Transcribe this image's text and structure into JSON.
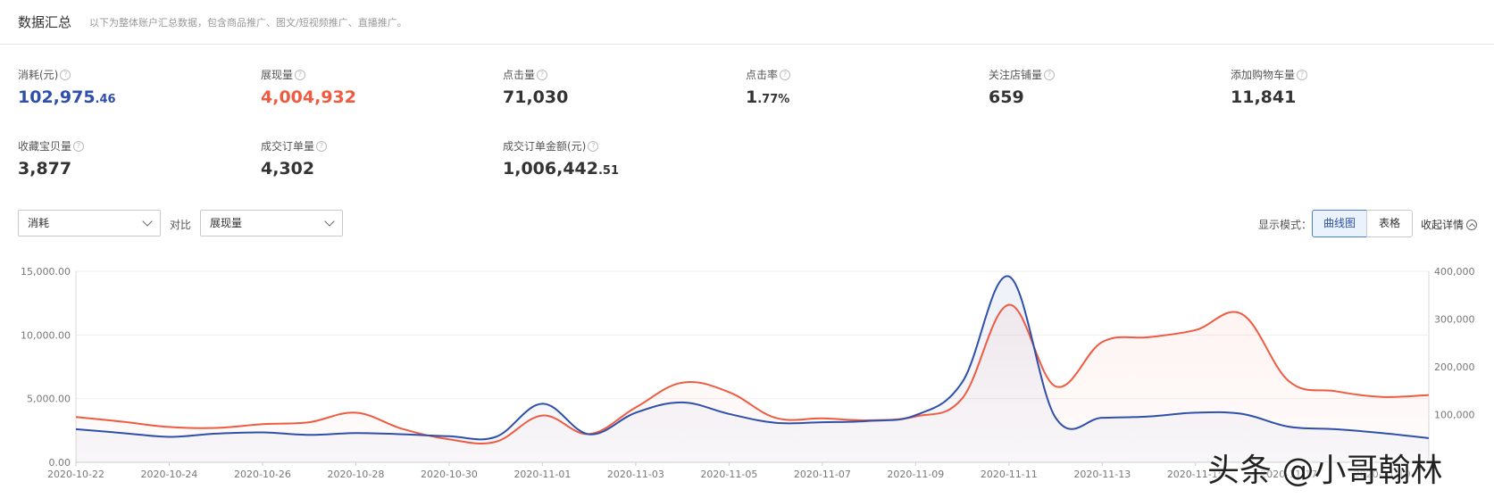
{
  "header": {
    "title": "数据汇总",
    "description": "以下为整体账户汇总数据，包含商品推广、图文/短视频推广、直播推广。"
  },
  "metrics": [
    {
      "label": "消耗(元)",
      "int": "102,975",
      "dec": ".46",
      "color": "blue"
    },
    {
      "label": "展现量",
      "int": "4,004,932",
      "dec": "",
      "color": "red"
    },
    {
      "label": "点击量",
      "int": "71,030",
      "dec": "",
      "color": ""
    },
    {
      "label": "点击率",
      "int": "1",
      "dec": ".77%",
      "color": ""
    },
    {
      "label": "关注店铺量",
      "int": "659",
      "dec": "",
      "color": ""
    },
    {
      "label": "添加购物车量",
      "int": "11,841",
      "dec": "",
      "color": ""
    },
    {
      "label": "收藏宝贝量",
      "int": "3,877",
      "dec": "",
      "color": ""
    },
    {
      "label": "成交订单量",
      "int": "4,302",
      "dec": "",
      "color": ""
    },
    {
      "label": "成交订单金额(元)",
      "int": "1,006,442",
      "dec": ".51",
      "color": ""
    }
  ],
  "help_glyph": "?",
  "controls": {
    "metric_select": "消耗",
    "compare_label": "对比",
    "compare_select": "展现量",
    "display_mode_label": "显示模式：",
    "mode_curve": "曲线图",
    "mode_table": "表格",
    "collapse_label": "收起详情"
  },
  "colors": {
    "primary_series": "#2e4faa",
    "secondary_series": "#ee5b41",
    "active_tab": "#4a7fd4"
  },
  "chart_data": {
    "type": "line",
    "x": [
      "2020-10-22",
      "2020-10-23",
      "2020-10-24",
      "2020-10-25",
      "2020-10-26",
      "2020-10-27",
      "2020-10-28",
      "2020-10-29",
      "2020-10-30",
      "2020-10-31",
      "2020-11-01",
      "2020-11-02",
      "2020-11-03",
      "2020-11-04",
      "2020-11-05",
      "2020-11-06",
      "2020-11-07",
      "2020-11-08",
      "2020-11-09",
      "2020-11-10",
      "2020-11-11",
      "2020-11-12",
      "2020-11-13",
      "2020-11-14",
      "2020-11-15",
      "2020-11-16",
      "2020-11-17",
      "2020-11-18",
      "2020-11-19",
      "2020-11-20"
    ],
    "x_tick_labels": [
      "2020-10-22",
      "2020-10-24",
      "2020-10-26",
      "2020-10-28",
      "2020-10-30",
      "2020-11-01",
      "2020-11-03",
      "2020-11-05",
      "2020-11-07",
      "2020-11-09",
      "2020-11-11",
      "2020-11-13",
      "2020-11-15",
      "2020-11-17",
      "2020-11-19"
    ],
    "series": [
      {
        "name": "消耗",
        "axis": "left",
        "values": [
          2600,
          2300,
          2000,
          2250,
          2350,
          2150,
          2300,
          2200,
          2050,
          2000,
          4600,
          2200,
          3900,
          4700,
          3800,
          3100,
          3150,
          3250,
          3700,
          6300,
          14600,
          3500,
          3500,
          3600,
          3900,
          3800,
          2800,
          2600,
          2300,
          1900
        ]
      },
      {
        "name": "展现量",
        "axis": "right",
        "values": [
          95000,
          85000,
          74000,
          72000,
          80000,
          84000,
          104000,
          70000,
          48000,
          43000,
          98000,
          59000,
          115000,
          167000,
          147000,
          93000,
          92000,
          88000,
          96000,
          134000,
          330000,
          159000,
          252000,
          262000,
          277000,
          310000,
          170000,
          149000,
          137000,
          141000
        ]
      }
    ],
    "y_left": {
      "min": 0,
      "max": 15000,
      "ticks": [
        "0.00",
        "5,000.00",
        "10,000.00",
        "15,000.00"
      ]
    },
    "y_right": {
      "min": 0,
      "max": 400000,
      "ticks": [
        "100,000",
        "200,000",
        "300,000",
        "400,000"
      ]
    },
    "grid": true
  },
  "watermark": "头条 @小哥翰林"
}
